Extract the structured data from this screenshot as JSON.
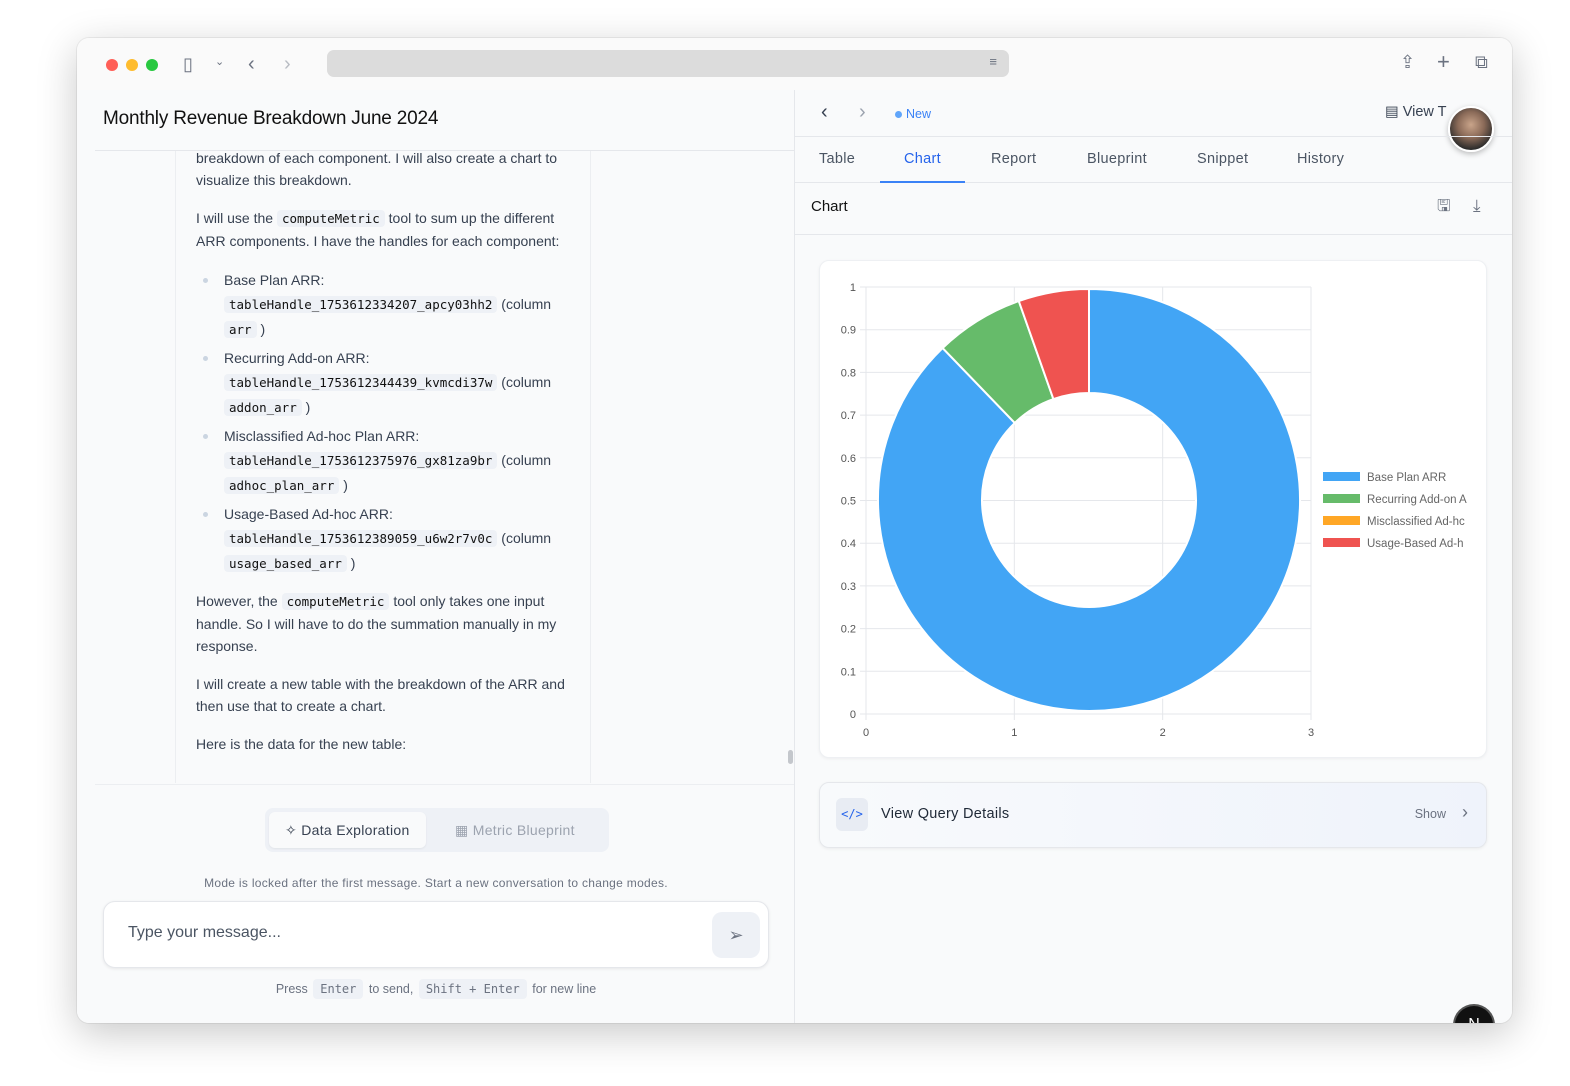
{
  "browser": {
    "url": ""
  },
  "left": {
    "title": "Monthly Revenue Breakdown June 2024",
    "para1": "breakdown of each component. I will also create a chart to visualize this breakdown.",
    "para2_a": "I will use the ",
    "para2_code": "computeMetric",
    "para2_b": " tool to sum up the different ARR components. I have the handles for each component:",
    "items": [
      {
        "label": "Base Plan ARR:",
        "handle": "tableHandle_1753612334207_apcy03hh2",
        "col_prefix": "(column",
        "column": "arr",
        "close": ")"
      },
      {
        "label": "Recurring Add-on ARR:",
        "handle": "tableHandle_1753612344439_kvmcdi37w",
        "col_prefix": "(column",
        "column": "addon_arr",
        "close": ")"
      },
      {
        "label": "Misclassified Ad-hoc Plan ARR:",
        "handle": "tableHandle_1753612375976_gx81za9br",
        "col_prefix": "(column",
        "column": "adhoc_plan_arr",
        "close": ")"
      },
      {
        "label": "Usage-Based Ad-hoc ARR:",
        "handle": "tableHandle_1753612389059_u6w2r7v0c",
        "col_prefix": "(column",
        "column": "usage_based_arr",
        "close": ")"
      }
    ],
    "para3_a": "However, the ",
    "para3_code": "computeMetric",
    "para3_b": " tool only takes one input handle. So I will have to do the summation manually in my response.",
    "para4": "I will create a new table with the breakdown of the ARR and then use that to create a chart.",
    "para5": "Here is the data for the new table:",
    "modes": [
      {
        "label": "Data Exploration",
        "icon": "sparkles-icon",
        "active": true
      },
      {
        "label": "Metric Blueprint",
        "icon": "grid-icon",
        "active": false
      }
    ],
    "lock_note": "Mode is locked after the first message. Start a new conversation to change modes.",
    "input_placeholder": "Type your message...",
    "hint": {
      "press": "Press",
      "enter": "Enter",
      "to_send": "to send,",
      "shift_enter": "Shift + Enter",
      "new_line": "for new line"
    }
  },
  "right": {
    "badge": "New",
    "view_label": "View T",
    "tabs": [
      "Table",
      "Chart",
      "Report",
      "Blueprint",
      "Snippet",
      "History"
    ],
    "active_tab": "Chart",
    "section_title": "Chart",
    "query": {
      "label": "View Query Details",
      "action": "Show"
    }
  },
  "fab": "N",
  "chart_data": {
    "type": "pie",
    "subtype": "donut",
    "categories": [
      "Base Plan ARR",
      "Recurring Add-on ARR",
      "Misclassified Ad-hoc Plan ARR",
      "Usage-Based Ad-hoc ARR"
    ],
    "values": [
      0.878,
      0.068,
      0,
      0.054
    ],
    "colors": [
      "#42a5f5",
      "#66bb6a",
      "#ffa726",
      "#ef5350"
    ],
    "legend_labels": [
      "Base Plan ARR",
      "Recurring Add-on A",
      "Misclassified Ad-hc",
      "Usage-Based Ad-h"
    ],
    "yticks": [
      "0",
      "0.1",
      "0.2",
      "0.3",
      "0.4",
      "0.5",
      "0.6",
      "0.7",
      "0.8",
      "0.9",
      "1"
    ],
    "xticks": [
      "0",
      "1",
      "2",
      "3"
    ],
    "ylim": [
      0,
      1
    ],
    "xlim": [
      0,
      3
    ],
    "grid": true,
    "legend": "right"
  }
}
